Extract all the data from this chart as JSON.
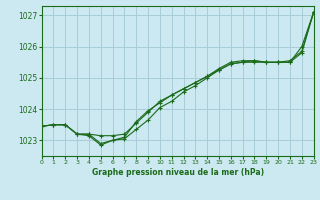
{
  "title": "Graphe pression niveau de la mer (hPa)",
  "xlabel_ticks": [
    0,
    1,
    2,
    3,
    4,
    5,
    6,
    7,
    8,
    9,
    10,
    11,
    12,
    13,
    14,
    15,
    16,
    17,
    18,
    19,
    20,
    21,
    22,
    23
  ],
  "ylim": [
    1022.5,
    1027.3
  ],
  "yticks": [
    1023,
    1024,
    1025,
    1026,
    1027
  ],
  "xlim": [
    0,
    23
  ],
  "background_color": "#cce8f0",
  "grid_color": "#a8cdd8",
  "line_color": "#1a6b1a",
  "series1_x": [
    0,
    1,
    2,
    3,
    4,
    5,
    6,
    7,
    8,
    9,
    10,
    11,
    12,
    13,
    14,
    15,
    16,
    17,
    18,
    19,
    20,
    21,
    22,
    23
  ],
  "series1_y": [
    1023.45,
    1023.5,
    1023.5,
    1023.2,
    1023.15,
    1022.85,
    1023.0,
    1023.05,
    1023.35,
    1023.65,
    1024.05,
    1024.25,
    1024.55,
    1024.75,
    1025.0,
    1025.25,
    1025.45,
    1025.5,
    1025.55,
    1025.5,
    1025.5,
    1025.55,
    1025.85,
    1027.1
  ],
  "series2_x": [
    0,
    1,
    2,
    3,
    4,
    5,
    6,
    7,
    8,
    9,
    10,
    11,
    12,
    13,
    14,
    15,
    16,
    17,
    18,
    19,
    20,
    21,
    22,
    23
  ],
  "series2_y": [
    1023.45,
    1023.5,
    1023.5,
    1023.2,
    1023.2,
    1023.15,
    1023.15,
    1023.2,
    1023.55,
    1023.9,
    1024.25,
    1024.45,
    1024.65,
    1024.85,
    1025.05,
    1025.3,
    1025.5,
    1025.55,
    1025.55,
    1025.5,
    1025.5,
    1025.5,
    1026.0,
    1027.1
  ],
  "series3_x": [
    0,
    1,
    2,
    3,
    4,
    5,
    6,
    7,
    8,
    9,
    10,
    11,
    12,
    13,
    14,
    15,
    16,
    17,
    18,
    19,
    20,
    21,
    22,
    23
  ],
  "series3_y": [
    1023.45,
    1023.5,
    1023.5,
    1023.2,
    1023.2,
    1022.9,
    1023.0,
    1023.1,
    1023.6,
    1023.95,
    1024.2,
    1024.45,
    1024.65,
    1024.85,
    1025.05,
    1025.25,
    1025.45,
    1025.5,
    1025.5,
    1025.5,
    1025.5,
    1025.5,
    1025.8,
    1027.1
  ]
}
